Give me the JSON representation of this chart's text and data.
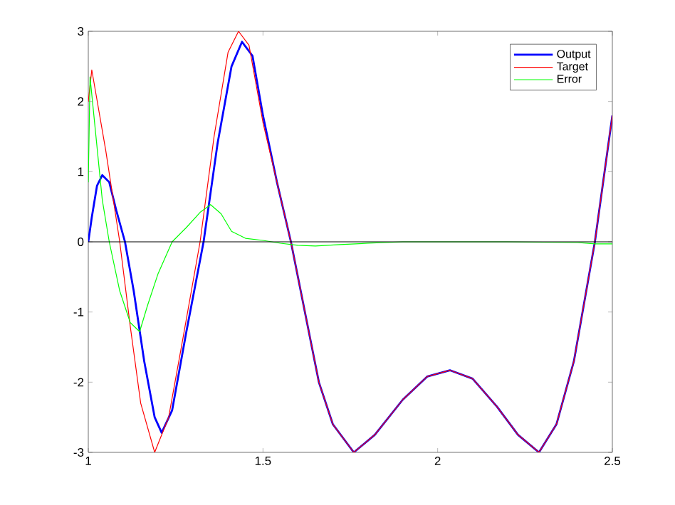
{
  "chart_data": {
    "type": "line",
    "xlim": [
      1,
      2.5
    ],
    "ylim": [
      -3,
      3
    ],
    "xticks": [
      1,
      1.5,
      2,
      2.5
    ],
    "yticks": [
      -3,
      -2,
      -1,
      0,
      1,
      2,
      3
    ],
    "grid": false,
    "legend": "top right",
    "marker": "none",
    "line_style": "solid",
    "ref_lines": [
      {
        "axis": "y",
        "value": 0,
        "color": "#000000"
      }
    ],
    "series": [
      {
        "name": "Output",
        "color": "#0000ff",
        "x": [
          1.0,
          1.01,
          1.025,
          1.04,
          1.06,
          1.08,
          1.105,
          1.13,
          1.16,
          1.19,
          1.21,
          1.24,
          1.28,
          1.33,
          1.37,
          1.41,
          1.44,
          1.47,
          1.5,
          1.54,
          1.58,
          1.62,
          1.66,
          1.7,
          1.76,
          1.82,
          1.9,
          1.97,
          2.035,
          2.1,
          2.17,
          2.23,
          2.29,
          2.34,
          2.39,
          2.45,
          2.5
        ],
        "values": [
          0,
          0.35,
          0.8,
          0.95,
          0.85,
          0.45,
          0,
          -0.7,
          -1.7,
          -2.5,
          -2.72,
          -2.4,
          -1.3,
          0,
          1.4,
          2.5,
          2.85,
          2.65,
          1.8,
          0.85,
          0,
          -1.0,
          -2.0,
          -2.6,
          -3.0,
          -2.75,
          -2.25,
          -1.92,
          -1.83,
          -1.95,
          -2.35,
          -2.75,
          -3.0,
          -2.6,
          -1.7,
          0,
          1.8
        ]
      },
      {
        "name": "Target",
        "color": "#ff0000",
        "x": [
          1.0,
          1.01,
          1.05,
          1.09,
          1.12,
          1.15,
          1.19,
          1.23,
          1.27,
          1.32,
          1.36,
          1.4,
          1.43,
          1.46,
          1.5,
          1.54,
          1.58,
          1.62,
          1.66,
          1.7,
          1.76,
          1.82,
          1.9,
          1.97,
          2.035,
          2.1,
          2.17,
          2.23,
          2.29,
          2.34,
          2.39,
          2.45,
          2.5
        ],
        "values": [
          2.0,
          2.45,
          1.3,
          0,
          -1.2,
          -2.3,
          -3.0,
          -2.5,
          -1.4,
          0,
          1.5,
          2.7,
          3.0,
          2.8,
          1.7,
          0.85,
          0,
          -1.0,
          -2.0,
          -2.6,
          -3.0,
          -2.75,
          -2.25,
          -1.92,
          -1.83,
          -1.95,
          -2.35,
          -2.75,
          -3.0,
          -2.6,
          -1.7,
          0,
          1.8
        ]
      },
      {
        "name": "Error",
        "color": "#00ff00",
        "x": [
          1.0,
          1.005,
          1.02,
          1.04,
          1.06,
          1.09,
          1.12,
          1.147,
          1.17,
          1.2,
          1.24,
          1.28,
          1.32,
          1.35,
          1.38,
          1.41,
          1.45,
          1.5,
          1.55,
          1.6,
          1.65,
          1.72,
          1.8,
          1.9,
          2.0,
          2.2,
          2.4,
          2.45,
          2.5
        ],
        "values": [
          0.85,
          2.35,
          1.6,
          0.6,
          0,
          -0.7,
          -1.15,
          -1.28,
          -0.9,
          -0.45,
          0,
          0.2,
          0.42,
          0.53,
          0.4,
          0.15,
          0.05,
          0.02,
          -0.02,
          -0.05,
          -0.06,
          -0.04,
          -0.02,
          0,
          0,
          0,
          -0.01,
          -0.03,
          -0.03
        ]
      }
    ]
  }
}
